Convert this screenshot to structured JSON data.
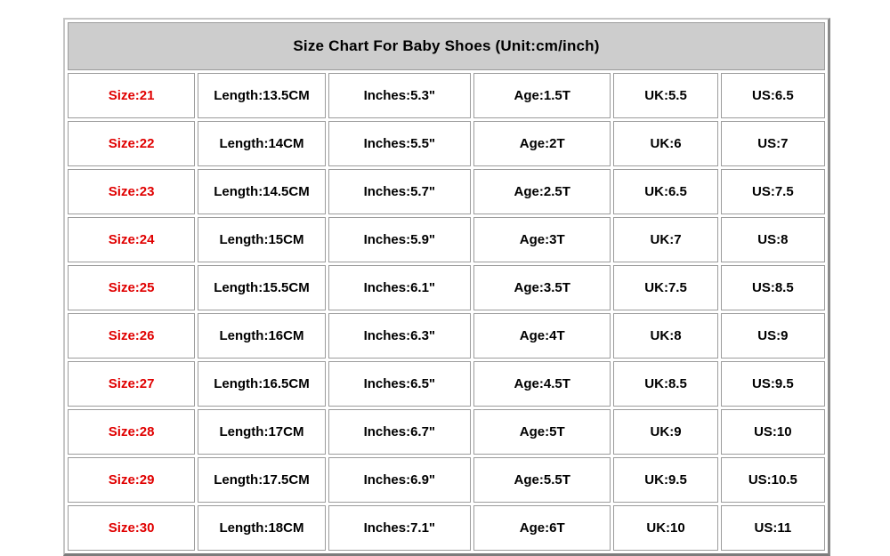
{
  "chart_data": {
    "type": "table",
    "title": "Size Chart For Baby Shoes (Unit:cm/inch)",
    "unit": "cm/inch",
    "column_keys": [
      "size",
      "length",
      "inches",
      "age",
      "uk",
      "us"
    ],
    "display_rows": [
      [
        "Size:21",
        "Length:13.5CM",
        "Inches:5.3\"",
        "Age:1.5T",
        "UK:5.5",
        "US:6.5"
      ],
      [
        "Size:22",
        "Length:14CM",
        "Inches:5.5\"",
        "Age:2T",
        "UK:6",
        "US:7"
      ],
      [
        "Size:23",
        "Length:14.5CM",
        "Inches:5.7\"",
        "Age:2.5T",
        "UK:6.5",
        "US:7.5"
      ],
      [
        "Size:24",
        "Length:15CM",
        "Inches:5.9\"",
        "Age:3T",
        "UK:7",
        "US:8"
      ],
      [
        "Size:25",
        "Length:15.5CM",
        "Inches:6.1\"",
        "Age:3.5T",
        "UK:7.5",
        "US:8.5"
      ],
      [
        "Size:26",
        "Length:16CM",
        "Inches:6.3\"",
        "Age:4T",
        "UK:8",
        "US:9"
      ],
      [
        "Size:27",
        "Length:16.5CM",
        "Inches:6.5\"",
        "Age:4.5T",
        "UK:8.5",
        "US:9.5"
      ],
      [
        "Size:28",
        "Length:17CM",
        "Inches:6.7\"",
        "Age:5T",
        "UK:9",
        "US:10"
      ],
      [
        "Size:29",
        "Length:17.5CM",
        "Inches:6.9\"",
        "Age:5.5T",
        "UK:9.5",
        "US:10.5"
      ],
      [
        "Size:30",
        "Length:18CM",
        "Inches:7.1\"",
        "Age:6T",
        "UK:10",
        "US:11"
      ]
    ],
    "numeric_rows": [
      {
        "size": 21,
        "length_cm": 13.5,
        "inches": 5.3,
        "age": "1.5T",
        "uk": 5.5,
        "us": 6.5
      },
      {
        "size": 22,
        "length_cm": 14,
        "inches": 5.5,
        "age": "2T",
        "uk": 6,
        "us": 7
      },
      {
        "size": 23,
        "length_cm": 14.5,
        "inches": 5.7,
        "age": "2.5T",
        "uk": 6.5,
        "us": 7.5
      },
      {
        "size": 24,
        "length_cm": 15,
        "inches": 5.9,
        "age": "3T",
        "uk": 7,
        "us": 8
      },
      {
        "size": 25,
        "length_cm": 15.5,
        "inches": 6.1,
        "age": "3.5T",
        "uk": 7.5,
        "us": 8.5
      },
      {
        "size": 26,
        "length_cm": 16,
        "inches": 6.3,
        "age": "4T",
        "uk": 8,
        "us": 9
      },
      {
        "size": 27,
        "length_cm": 16.5,
        "inches": 6.5,
        "age": "4.5T",
        "uk": 8.5,
        "us": 9.5
      },
      {
        "size": 28,
        "length_cm": 17,
        "inches": 6.7,
        "age": "5T",
        "uk": 9,
        "us": 10
      },
      {
        "size": 29,
        "length_cm": 17.5,
        "inches": 6.9,
        "age": "5.5T",
        "uk": 9.5,
        "us": 10.5
      },
      {
        "size": 30,
        "length_cm": 18,
        "inches": 7.1,
        "age": "6T",
        "uk": 10,
        "us": 11
      }
    ],
    "colors": {
      "header_bg": "#cdcdcd",
      "size_text": "#e00000",
      "cell_border": "#9c9c9c",
      "cell_bg": "#ffffff",
      "body_text": "#000000"
    },
    "layout": {
      "legend": false,
      "grid": true,
      "title_position": "top-center"
    }
  }
}
